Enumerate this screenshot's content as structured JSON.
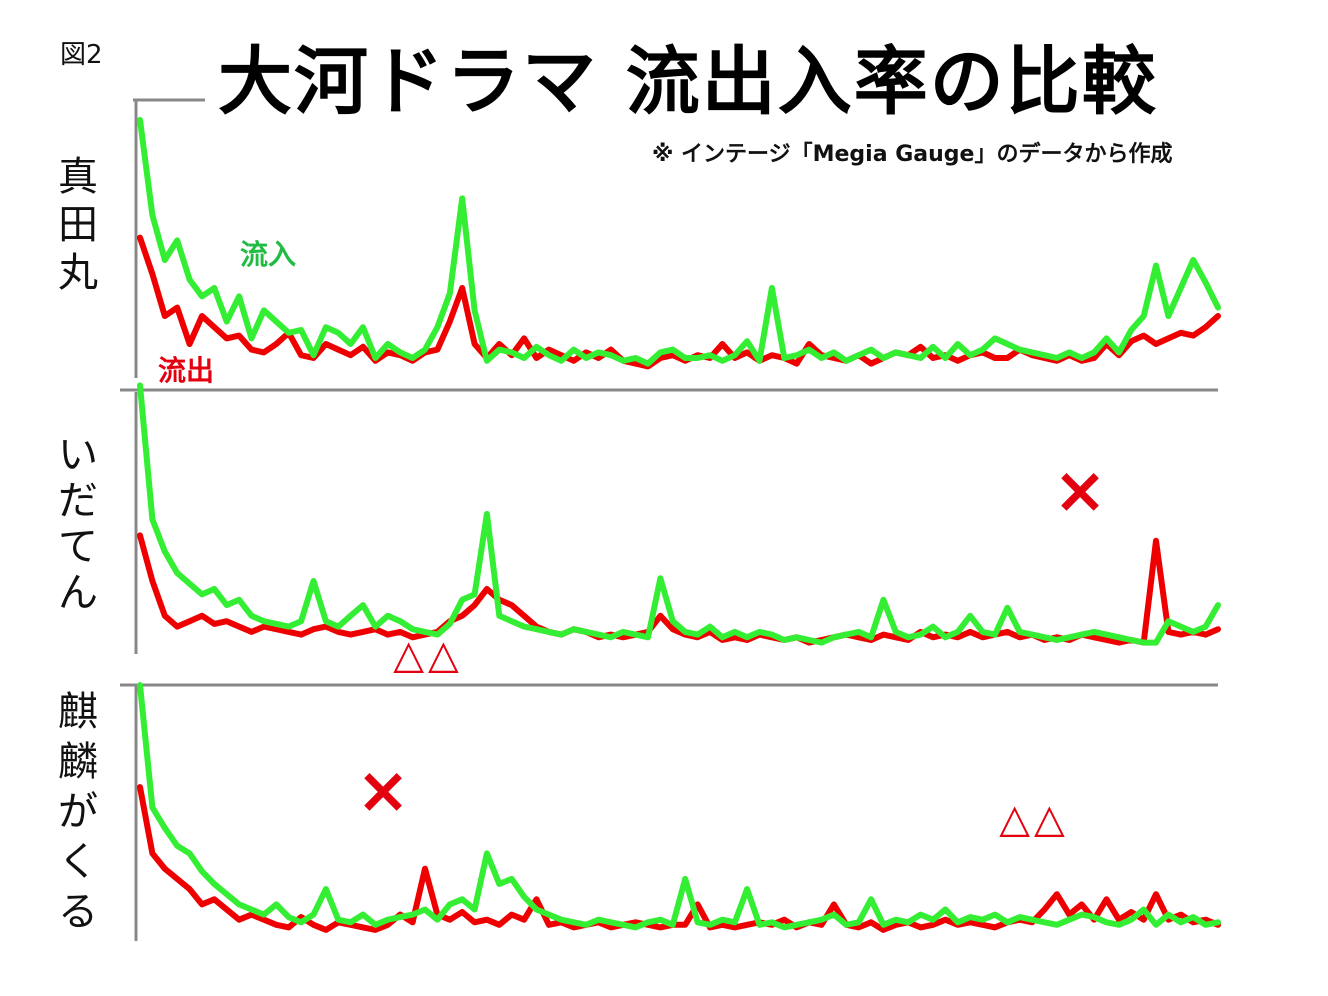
{
  "figure_label": "図2",
  "title": "大河ドラマ 流出入率の比較",
  "source_note": "※ インテージ「Megia Gauge」のデータから作成",
  "colors": {
    "inflow": "#33ee33",
    "outflow": "#ee0000",
    "axis": "#888888",
    "marker": "#e3000f"
  },
  "chart_data": [
    {
      "type": "line",
      "panel_label": [
        "真",
        "田",
        "丸"
      ],
      "series": [
        {
          "name": "流入",
          "values": [
            0.9,
            0.56,
            0.4,
            0.47,
            0.33,
            0.27,
            0.3,
            0.18,
            0.27,
            0.12,
            0.22,
            0.18,
            0.14,
            0.15,
            0.06,
            0.16,
            0.14,
            0.1,
            0.16,
            0.05,
            0.1,
            0.07,
            0.05,
            0.08,
            0.16,
            0.28,
            0.62,
            0.22,
            0.04,
            0.08,
            0.07,
            0.05,
            0.09,
            0.06,
            0.04,
            0.08,
            0.05,
            0.07,
            0.06,
            0.04,
            0.05,
            0.03,
            0.07,
            0.08,
            0.05,
            0.05,
            0.06,
            0.04,
            0.06,
            0.11,
            0.04,
            0.3,
            0.05,
            0.06,
            0.08,
            0.05,
            0.07,
            0.04,
            0.06,
            0.08,
            0.05,
            0.07,
            0.06,
            0.05,
            0.09,
            0.05,
            0.1,
            0.06,
            0.08,
            0.12,
            0.1,
            0.08,
            0.07,
            0.06,
            0.05,
            0.07,
            0.05,
            0.07,
            0.12,
            0.07,
            0.15,
            0.2,
            0.38,
            0.2,
            0.3,
            0.4,
            0.32,
            0.23
          ]
        },
        {
          "name": "流出",
          "values": [
            0.48,
            0.35,
            0.2,
            0.23,
            0.1,
            0.2,
            0.16,
            0.12,
            0.13,
            0.08,
            0.07,
            0.1,
            0.14,
            0.06,
            0.05,
            0.1,
            0.08,
            0.06,
            0.09,
            0.04,
            0.07,
            0.06,
            0.04,
            0.07,
            0.08,
            0.18,
            0.3,
            0.1,
            0.05,
            0.1,
            0.06,
            0.12,
            0.05,
            0.08,
            0.06,
            0.04,
            0.07,
            0.05,
            0.08,
            0.04,
            0.03,
            0.02,
            0.05,
            0.06,
            0.04,
            0.06,
            0.05,
            0.1,
            0.05,
            0.07,
            0.04,
            0.06,
            0.05,
            0.03,
            0.1,
            0.06,
            0.05,
            0.04,
            0.06,
            0.03,
            0.05,
            0.07,
            0.06,
            0.09,
            0.05,
            0.06,
            0.04,
            0.06,
            0.07,
            0.05,
            0.05,
            0.08,
            0.06,
            0.05,
            0.04,
            0.06,
            0.04,
            0.05,
            0.1,
            0.06,
            0.11,
            0.13,
            0.1,
            0.12,
            0.14,
            0.13,
            0.16,
            0.2
          ]
        }
      ],
      "annotations": []
    },
    {
      "type": "line",
      "panel_label": [
        "い",
        "だ",
        "て",
        "ん"
      ],
      "series": [
        {
          "name": "流入",
          "values": [
            0.98,
            0.48,
            0.36,
            0.28,
            0.24,
            0.2,
            0.22,
            0.16,
            0.18,
            0.12,
            0.1,
            0.09,
            0.08,
            0.1,
            0.25,
            0.1,
            0.08,
            0.12,
            0.16,
            0.08,
            0.12,
            0.1,
            0.07,
            0.06,
            0.05,
            0.09,
            0.18,
            0.2,
            0.5,
            0.12,
            0.1,
            0.08,
            0.07,
            0.06,
            0.05,
            0.07,
            0.06,
            0.05,
            0.04,
            0.06,
            0.05,
            0.04,
            0.26,
            0.1,
            0.06,
            0.05,
            0.08,
            0.04,
            0.06,
            0.04,
            0.06,
            0.05,
            0.03,
            0.04,
            0.03,
            0.02,
            0.04,
            0.05,
            0.06,
            0.04,
            0.18,
            0.06,
            0.04,
            0.05,
            0.08,
            0.04,
            0.06,
            0.12,
            0.06,
            0.05,
            0.15,
            0.06,
            0.05,
            0.04,
            0.03,
            0.04,
            0.05,
            0.06,
            0.05,
            0.04,
            0.03,
            0.02,
            0.02,
            0.1,
            0.08,
            0.06,
            0.08,
            0.16
          ]
        },
        {
          "name": "流出",
          "values": [
            0.42,
            0.25,
            0.12,
            0.08,
            0.1,
            0.12,
            0.09,
            0.1,
            0.08,
            0.06,
            0.08,
            0.07,
            0.06,
            0.05,
            0.07,
            0.08,
            0.06,
            0.05,
            0.06,
            0.07,
            0.05,
            0.06,
            0.04,
            0.05,
            0.06,
            0.1,
            0.12,
            0.16,
            0.22,
            0.18,
            0.16,
            0.12,
            0.08,
            0.06,
            0.05,
            0.07,
            0.06,
            0.04,
            0.05,
            0.04,
            0.05,
            0.06,
            0.12,
            0.07,
            0.05,
            0.04,
            0.06,
            0.03,
            0.04,
            0.03,
            0.05,
            0.04,
            0.03,
            0.04,
            0.02,
            0.03,
            0.04,
            0.05,
            0.04,
            0.03,
            0.05,
            0.04,
            0.03,
            0.06,
            0.04,
            0.05,
            0.04,
            0.06,
            0.04,
            0.05,
            0.06,
            0.04,
            0.05,
            0.03,
            0.04,
            0.03,
            0.05,
            0.04,
            0.03,
            0.02,
            0.03,
            0.02,
            0.4,
            0.06,
            0.05,
            0.06,
            0.05,
            0.07
          ]
        }
      ],
      "annotations": [
        {
          "text": "×",
          "position": "upper-right"
        },
        {
          "text": "△△",
          "position": "below-left"
        }
      ]
    },
    {
      "type": "line",
      "panel_label": [
        "麒",
        "麟",
        "が",
        "く",
        "る"
      ],
      "series": [
        {
          "name": "流入",
          "values": [
            0.98,
            0.5,
            0.42,
            0.35,
            0.32,
            0.25,
            0.2,
            0.16,
            0.12,
            0.1,
            0.08,
            0.12,
            0.07,
            0.05,
            0.08,
            0.18,
            0.06,
            0.05,
            0.08,
            0.04,
            0.06,
            0.07,
            0.08,
            0.1,
            0.06,
            0.12,
            0.14,
            0.1,
            0.32,
            0.2,
            0.22,
            0.15,
            0.1,
            0.08,
            0.06,
            0.05,
            0.04,
            0.06,
            0.05,
            0.04,
            0.03,
            0.05,
            0.06,
            0.04,
            0.22,
            0.05,
            0.04,
            0.06,
            0.05,
            0.18,
            0.04,
            0.05,
            0.03,
            0.04,
            0.05,
            0.06,
            0.08,
            0.04,
            0.05,
            0.14,
            0.04,
            0.06,
            0.05,
            0.08,
            0.06,
            0.1,
            0.05,
            0.07,
            0.06,
            0.08,
            0.05,
            0.07,
            0.06,
            0.05,
            0.04,
            0.06,
            0.08,
            0.07,
            0.05,
            0.04,
            0.06,
            0.1,
            0.04,
            0.08,
            0.05,
            0.07,
            0.04,
            0.05
          ]
        },
        {
          "name": "流出",
          "values": [
            0.58,
            0.32,
            0.26,
            0.22,
            0.18,
            0.12,
            0.14,
            0.1,
            0.06,
            0.08,
            0.06,
            0.04,
            0.03,
            0.07,
            0.04,
            0.02,
            0.05,
            0.04,
            0.03,
            0.02,
            0.04,
            0.08,
            0.05,
            0.26,
            0.08,
            0.06,
            0.09,
            0.05,
            0.06,
            0.04,
            0.08,
            0.06,
            0.14,
            0.04,
            0.05,
            0.03,
            0.04,
            0.05,
            0.03,
            0.04,
            0.05,
            0.04,
            0.03,
            0.04,
            0.04,
            0.12,
            0.03,
            0.04,
            0.03,
            0.04,
            0.05,
            0.04,
            0.06,
            0.03,
            0.05,
            0.04,
            0.12,
            0.04,
            0.03,
            0.05,
            0.02,
            0.04,
            0.05,
            0.03,
            0.04,
            0.06,
            0.04,
            0.05,
            0.04,
            0.03,
            0.05,
            0.06,
            0.05,
            0.1,
            0.16,
            0.08,
            0.12,
            0.06,
            0.14,
            0.06,
            0.09,
            0.06,
            0.16,
            0.06,
            0.08,
            0.05,
            0.06,
            0.04
          ]
        }
      ],
      "annotations": [
        {
          "text": "×",
          "position": "upper-left"
        },
        {
          "text": "△△",
          "position": "upper-right"
        }
      ]
    }
  ]
}
